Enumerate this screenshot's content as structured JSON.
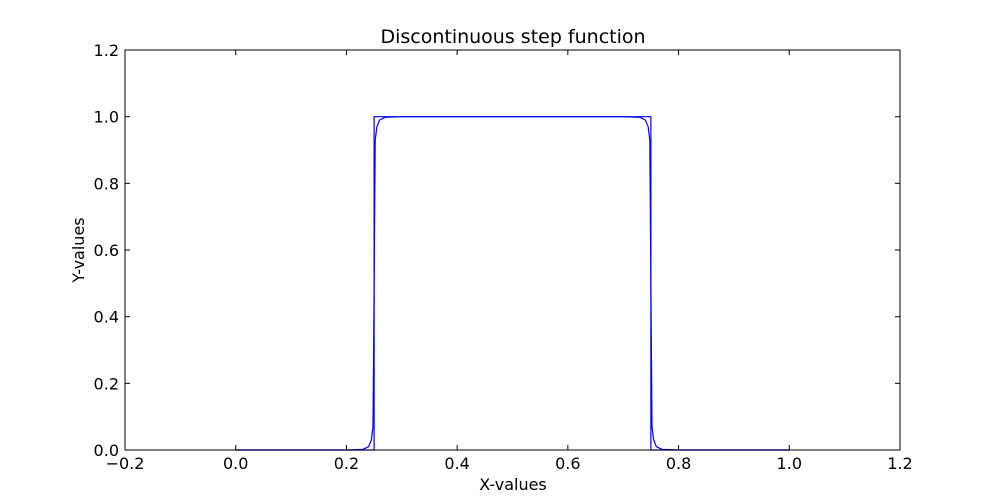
{
  "chart_data": {
    "type": "line",
    "title": "Discontinuous step function",
    "xlabel": "X-values",
    "ylabel": "Y-values",
    "xlim": [
      -0.2,
      1.2
    ],
    "ylim": [
      0.0,
      1.2
    ],
    "xticks": [
      -0.2,
      0.0,
      0.2,
      0.4,
      0.6,
      0.8,
      1.0,
      1.2
    ],
    "xtick_labels": [
      "−0.2",
      "0.0",
      "0.2",
      "0.4",
      "0.6",
      "0.8",
      "1.0",
      "1.2"
    ],
    "yticks": [
      0.0,
      0.2,
      0.4,
      0.6,
      0.8,
      1.0,
      1.2
    ],
    "ytick_labels": [
      "0.0",
      "0.2",
      "0.4",
      "0.6",
      "0.8",
      "1.0",
      "1.2"
    ],
    "grid": false,
    "series": [
      {
        "color": "#0000ff",
        "x": [
          0.0,
          0.25,
          0.25,
          0.75,
          0.75,
          1.0
        ],
        "y": [
          0.0,
          0.0,
          1.0,
          1.0,
          0.0,
          0.0
        ]
      },
      {
        "color": "#0000ff",
        "x": [
          0.0,
          0.2,
          0.23,
          0.24,
          0.245,
          0.248,
          0.25,
          0.252,
          0.255,
          0.26,
          0.27,
          0.3,
          0.5,
          0.7,
          0.73,
          0.74,
          0.745,
          0.748,
          0.75,
          0.752,
          0.755,
          0.76,
          0.77,
          0.8,
          1.0
        ],
        "y": [
          0.0,
          0.0,
          0.002,
          0.01,
          0.03,
          0.07,
          0.5,
          0.93,
          0.97,
          0.99,
          0.998,
          1.0,
          1.0,
          1.0,
          0.998,
          0.99,
          0.97,
          0.93,
          0.5,
          0.07,
          0.03,
          0.01,
          0.002,
          0.0,
          0.0
        ]
      }
    ]
  }
}
